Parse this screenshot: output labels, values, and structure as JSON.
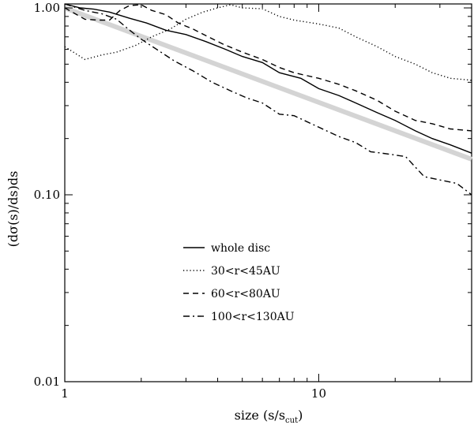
{
  "chart_data": {
    "type": "line",
    "title": "",
    "xlabel_main": "size (s/s",
    "xlabel_sub": "cut",
    "xlabel_close": ")",
    "ylabel": "(dσ(s)/ds)ds",
    "xscale": "log",
    "yscale": "log",
    "xlim": [
      1,
      40
    ],
    "ylim": [
      0.01,
      1.05
    ],
    "grid": false,
    "legend_placement": "center-left",
    "x_ticks": [
      {
        "value": 1,
        "label": "1"
      },
      {
        "value": 10,
        "label": "10"
      }
    ],
    "y_ticks": [
      {
        "value": 0.01,
        "label": "0.01"
      },
      {
        "value": 0.1,
        "label": "0.10"
      },
      {
        "value": 1,
        "label": "1.00"
      }
    ],
    "reference_line": {
      "color": "#d4d4d4",
      "x": [
        1,
        40
      ],
      "y": [
        1.0,
        0.155
      ]
    },
    "series": [
      {
        "name": "whole disc",
        "dash": "solid",
        "x": [
          1,
          1.15,
          1.3,
          1.5,
          1.8,
          2.1,
          2.5,
          3,
          3.6,
          4.3,
          5,
          6,
          7,
          8.5,
          10,
          12,
          14,
          17,
          20,
          24,
          28,
          33,
          40
        ],
        "y": [
          1.05,
          1.0,
          0.985,
          0.95,
          0.88,
          0.83,
          0.76,
          0.72,
          0.66,
          0.6,
          0.55,
          0.51,
          0.45,
          0.42,
          0.37,
          0.34,
          0.31,
          0.275,
          0.25,
          0.22,
          0.2,
          0.185,
          0.167
        ]
      },
      {
        "name": "30<r<45AU",
        "dash": "dotted",
        "x": [
          1,
          1.2,
          1.4,
          1.6,
          1.9,
          2.2,
          2.6,
          3,
          3.5,
          4,
          4.5,
          5,
          6,
          7,
          8,
          10,
          12,
          14,
          17,
          20,
          24,
          28,
          33,
          40
        ],
        "y": [
          0.62,
          0.53,
          0.56,
          0.58,
          0.63,
          0.7,
          0.77,
          0.87,
          0.95,
          1.0,
          1.04,
          1.0,
          0.99,
          0.9,
          0.86,
          0.82,
          0.78,
          0.7,
          0.62,
          0.55,
          0.5,
          0.45,
          0.42,
          0.41
        ]
      },
      {
        "name": "60<r<80AU",
        "dash": "dashed",
        "x": [
          1,
          1.1,
          1.2,
          1.35,
          1.5,
          1.65,
          1.8,
          2,
          2.2,
          2.5,
          2.8,
          3.2,
          3.6,
          4.2,
          5,
          6,
          7,
          8,
          10,
          12,
          14,
          17,
          20,
          24,
          28,
          33,
          40
        ],
        "y": [
          1.0,
          0.93,
          0.87,
          0.86,
          0.86,
          0.97,
          1.03,
          1.04,
          0.97,
          0.92,
          0.83,
          0.77,
          0.71,
          0.64,
          0.58,
          0.53,
          0.48,
          0.45,
          0.42,
          0.39,
          0.36,
          0.32,
          0.28,
          0.25,
          0.24,
          0.225,
          0.22
        ]
      },
      {
        "name": "100<r<130AU",
        "dash": "dashdot",
        "x": [
          1,
          1.2,
          1.4,
          1.6,
          1.8,
          2,
          2.3,
          2.7,
          3.2,
          3.8,
          4.5,
          5.2,
          6,
          7,
          8,
          10,
          12,
          14,
          16,
          19,
          22,
          26,
          30,
          35,
          40
        ],
        "y": [
          1.05,
          0.97,
          0.93,
          0.87,
          0.76,
          0.68,
          0.6,
          0.52,
          0.46,
          0.4,
          0.36,
          0.33,
          0.31,
          0.27,
          0.265,
          0.23,
          0.205,
          0.19,
          0.17,
          0.165,
          0.16,
          0.125,
          0.12,
          0.115,
          0.1
        ]
      }
    ]
  }
}
